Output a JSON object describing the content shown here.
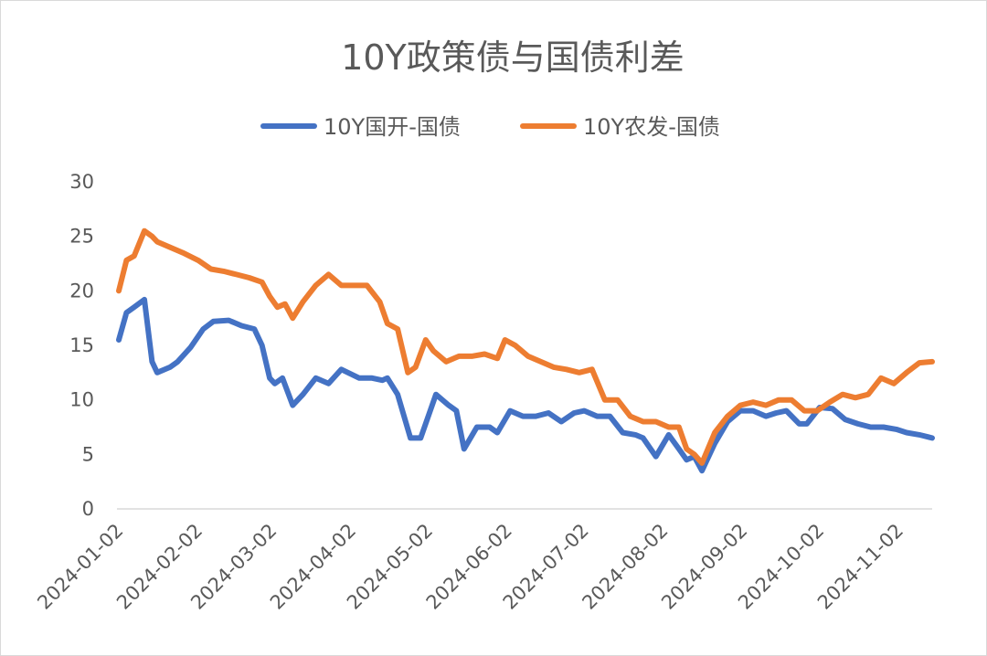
{
  "chart_data": {
    "type": "line",
    "title": "10Y政策债与国债利差",
    "xlabel": "",
    "ylabel": "",
    "ylim": [
      0,
      30
    ],
    "yticks": [
      "0",
      "5",
      "10",
      "15",
      "20",
      "25",
      "30"
    ],
    "xticks": [
      "2024-01-02",
      "2024-02-02",
      "2024-03-02",
      "2024-04-02",
      "2024-05-02",
      "2024-06-02",
      "2024-07-02",
      "2024-08-02",
      "2024-09-02",
      "2024-10-02",
      "2024-11-02"
    ],
    "xrange": [
      "2024-01-02",
      "2024-11-15"
    ],
    "grid": false,
    "legend_position": "top",
    "colors": {
      "series1": "#4472C4",
      "series2": "#ED7D31",
      "axis": "#d9d9d9",
      "text": "#595959"
    },
    "series": [
      {
        "name": "10Y国开-国债",
        "x": [
          "2024-01-02",
          "2024-01-05",
          "2024-01-08",
          "2024-01-12",
          "2024-01-15",
          "2024-01-17",
          "2024-01-22",
          "2024-01-25",
          "2024-01-30",
          "2024-02-04",
          "2024-02-08",
          "2024-02-14",
          "2024-02-19",
          "2024-02-24",
          "2024-02-27",
          "2024-03-01",
          "2024-03-03",
          "2024-03-06",
          "2024-03-10",
          "2024-03-14",
          "2024-03-19",
          "2024-03-24",
          "2024-03-29",
          "2024-04-05",
          "2024-04-10",
          "2024-04-14",
          "2024-04-16",
          "2024-04-20",
          "2024-04-25",
          "2024-04-29",
          "2024-05-05",
          "2024-05-10",
          "2024-05-13",
          "2024-05-16",
          "2024-05-21",
          "2024-05-26",
          "2024-05-29",
          "2024-06-03",
          "2024-06-08",
          "2024-06-13",
          "2024-06-18",
          "2024-06-23",
          "2024-06-28",
          "2024-07-02",
          "2024-07-07",
          "2024-07-12",
          "2024-07-17",
          "2024-07-22",
          "2024-07-25",
          "2024-07-30",
          "2024-08-04",
          "2024-08-08",
          "2024-08-11",
          "2024-08-14",
          "2024-08-17",
          "2024-08-22",
          "2024-08-27",
          "2024-09-01",
          "2024-09-06",
          "2024-09-11",
          "2024-09-15",
          "2024-09-19",
          "2024-09-24",
          "2024-09-27",
          "2024-10-02",
          "2024-10-07",
          "2024-10-12",
          "2024-10-17",
          "2024-10-22",
          "2024-10-27",
          "2024-11-01",
          "2024-11-05",
          "2024-11-10",
          "2024-11-15"
        ],
        "values": [
          15.5,
          18,
          18.5,
          19.2,
          13.5,
          12.5,
          13,
          13.5,
          14.8,
          16.5,
          17.2,
          17.3,
          16.8,
          16.5,
          15,
          12,
          11.5,
          12,
          9.5,
          10.5,
          12,
          11.5,
          12.8,
          12,
          12,
          11.8,
          12,
          10.5,
          6.5,
          6.5,
          10.5,
          9.5,
          9,
          5.5,
          7.5,
          7.5,
          7,
          9,
          8.5,
          8.5,
          8.8,
          8,
          8.8,
          9,
          8.5,
          8.5,
          7,
          6.8,
          6.5,
          4.8,
          6.8,
          5.5,
          4.5,
          4.8,
          3.5,
          6,
          8,
          9,
          9,
          8.5,
          8.8,
          9,
          7.8,
          7.8,
          9.3,
          9.2,
          8.2,
          7.8,
          7.5,
          7.5,
          7.3,
          7,
          6.8,
          6.5
        ]
      },
      {
        "name": "10Y农发-国债",
        "x": [
          "2024-01-02",
          "2024-01-05",
          "2024-01-08",
          "2024-01-12",
          "2024-01-15",
          "2024-01-17",
          "2024-01-22",
          "2024-01-27",
          "2024-02-02",
          "2024-02-07",
          "2024-02-12",
          "2024-02-17",
          "2024-02-22",
          "2024-02-27",
          "2024-03-01",
          "2024-03-04",
          "2024-03-07",
          "2024-03-10",
          "2024-03-14",
          "2024-03-19",
          "2024-03-24",
          "2024-03-29",
          "2024-04-03",
          "2024-04-08",
          "2024-04-13",
          "2024-04-16",
          "2024-04-20",
          "2024-04-24",
          "2024-04-27",
          "2024-05-01",
          "2024-05-04",
          "2024-05-09",
          "2024-05-14",
          "2024-05-19",
          "2024-05-24",
          "2024-05-29",
          "2024-06-01",
          "2024-06-05",
          "2024-06-10",
          "2024-06-15",
          "2024-06-20",
          "2024-06-25",
          "2024-06-30",
          "2024-07-05",
          "2024-07-10",
          "2024-07-15",
          "2024-07-20",
          "2024-07-25",
          "2024-07-30",
          "2024-08-04",
          "2024-08-08",
          "2024-08-11",
          "2024-08-14",
          "2024-08-17",
          "2024-08-22",
          "2024-08-27",
          "2024-09-01",
          "2024-09-06",
          "2024-09-11",
          "2024-09-16",
          "2024-09-21",
          "2024-09-26",
          "2024-10-01",
          "2024-10-06",
          "2024-10-11",
          "2024-10-16",
          "2024-10-21",
          "2024-10-26",
          "2024-10-31",
          "2024-11-05",
          "2024-11-10",
          "2024-11-15"
        ],
        "values": [
          20,
          22.8,
          23.2,
          25.5,
          25,
          24.5,
          24,
          23.5,
          22.8,
          22,
          21.8,
          21.5,
          21.2,
          20.8,
          19.5,
          18.5,
          18.8,
          17.5,
          19,
          20.5,
          21.5,
          20.5,
          20.5,
          20.5,
          19,
          17,
          16.5,
          12.5,
          13,
          15.5,
          14.5,
          13.5,
          14,
          14,
          14.2,
          13.8,
          15.5,
          15,
          14,
          13.5,
          13,
          12.8,
          12.5,
          12.8,
          10,
          10,
          8.5,
          8,
          8,
          7.5,
          7.5,
          5.5,
          5,
          4.2,
          7,
          8.5,
          9.5,
          9.8,
          9.5,
          10,
          10,
          9,
          9,
          9.8,
          10.5,
          10.2,
          10.5,
          12,
          11.5,
          12.5,
          13.4,
          13.5
        ]
      }
    ]
  }
}
